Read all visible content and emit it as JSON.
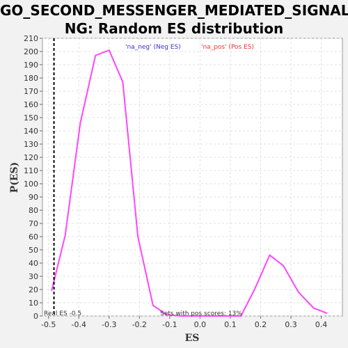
{
  "chart_data": {
    "type": "line",
    "title_line1": "GO_SECOND_MESSENGER_MEDIATED_SIGNALI",
    "title_line2": "NG: Random ES distribution",
    "xlabel": "ES",
    "ylabel": "P(ES)",
    "xlim": [
      -0.52,
      0.47
    ],
    "ylim": [
      0,
      210
    ],
    "x_ticks": [
      -0.5,
      -0.4,
      -0.3,
      -0.2,
      -0.1,
      0.0,
      0.1,
      0.2,
      0.3,
      0.4
    ],
    "x_tick_labels": [
      "-0.5",
      "-0.4",
      "-0.3",
      "-0.2",
      "-0.1",
      "0.0",
      "0.1",
      "0.2",
      "0.3",
      "0.4"
    ],
    "y_ticks": [
      0,
      10,
      20,
      30,
      40,
      50,
      60,
      70,
      80,
      90,
      100,
      110,
      120,
      130,
      140,
      150,
      160,
      170,
      180,
      190,
      200,
      210
    ],
    "grid": true,
    "series": [
      {
        "color": "#ff44ff",
        "x": [
          -0.49,
          -0.445,
          -0.395,
          -0.345,
          -0.3,
          -0.255,
          -0.205,
          -0.155,
          -0.11,
          -0.06,
          -0.01,
          0.035,
          0.085,
          0.135,
          0.18,
          0.23,
          0.275,
          0.325,
          0.375,
          0.42
        ],
        "y": [
          19,
          61,
          146,
          197,
          201,
          177,
          60,
          8,
          1,
          0,
          0,
          0,
          0,
          0,
          20,
          46,
          38,
          18,
          6,
          2
        ]
      }
    ],
    "real_es": -0.482,
    "legend": [
      {
        "label": "'na_neg' (Neg ES)",
        "color": "#3333cc"
      },
      {
        "label": "'na_pos' (Pos ES)",
        "color": "#ee3333"
      }
    ],
    "annotations": {
      "real_es_label": "Real ES -0.5",
      "pos_scores_label": "Sets with pos scores: 13%"
    }
  }
}
